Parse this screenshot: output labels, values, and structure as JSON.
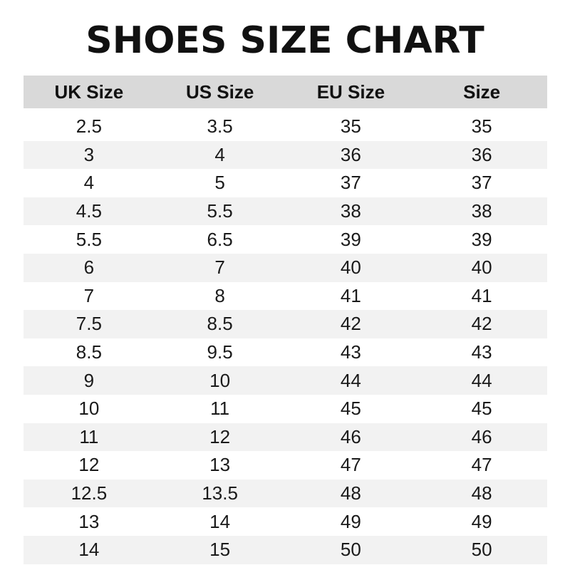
{
  "title": "SHOES SIZE CHART",
  "colors": {
    "header_bg": "#d9d9d9",
    "alt_row_bg": "#f2f2f2",
    "text": "#111111"
  },
  "columns": [
    "UK Size",
    "US Size",
    "EU Size",
    "Size"
  ],
  "rows": [
    [
      "2.5",
      "3.5",
      "35",
      "35"
    ],
    [
      "3",
      "4",
      "36",
      "36"
    ],
    [
      "4",
      "5",
      "37",
      "37"
    ],
    [
      "4.5",
      "5.5",
      "38",
      "38"
    ],
    [
      "5.5",
      "6.5",
      "39",
      "39"
    ],
    [
      "6",
      "7",
      "40",
      "40"
    ],
    [
      "7",
      "8",
      "41",
      "41"
    ],
    [
      "7.5",
      "8.5",
      "42",
      "42"
    ],
    [
      "8.5",
      "9.5",
      "43",
      "43"
    ],
    [
      "9",
      "10",
      "44",
      "44"
    ],
    [
      "10",
      "11",
      "45",
      "45"
    ],
    [
      "11",
      "12",
      "46",
      "46"
    ],
    [
      "12",
      "13",
      "47",
      "47"
    ],
    [
      "12.5",
      "13.5",
      "48",
      "48"
    ],
    [
      "13",
      "14",
      "49",
      "49"
    ],
    [
      "14",
      "15",
      "50",
      "50"
    ]
  ]
}
